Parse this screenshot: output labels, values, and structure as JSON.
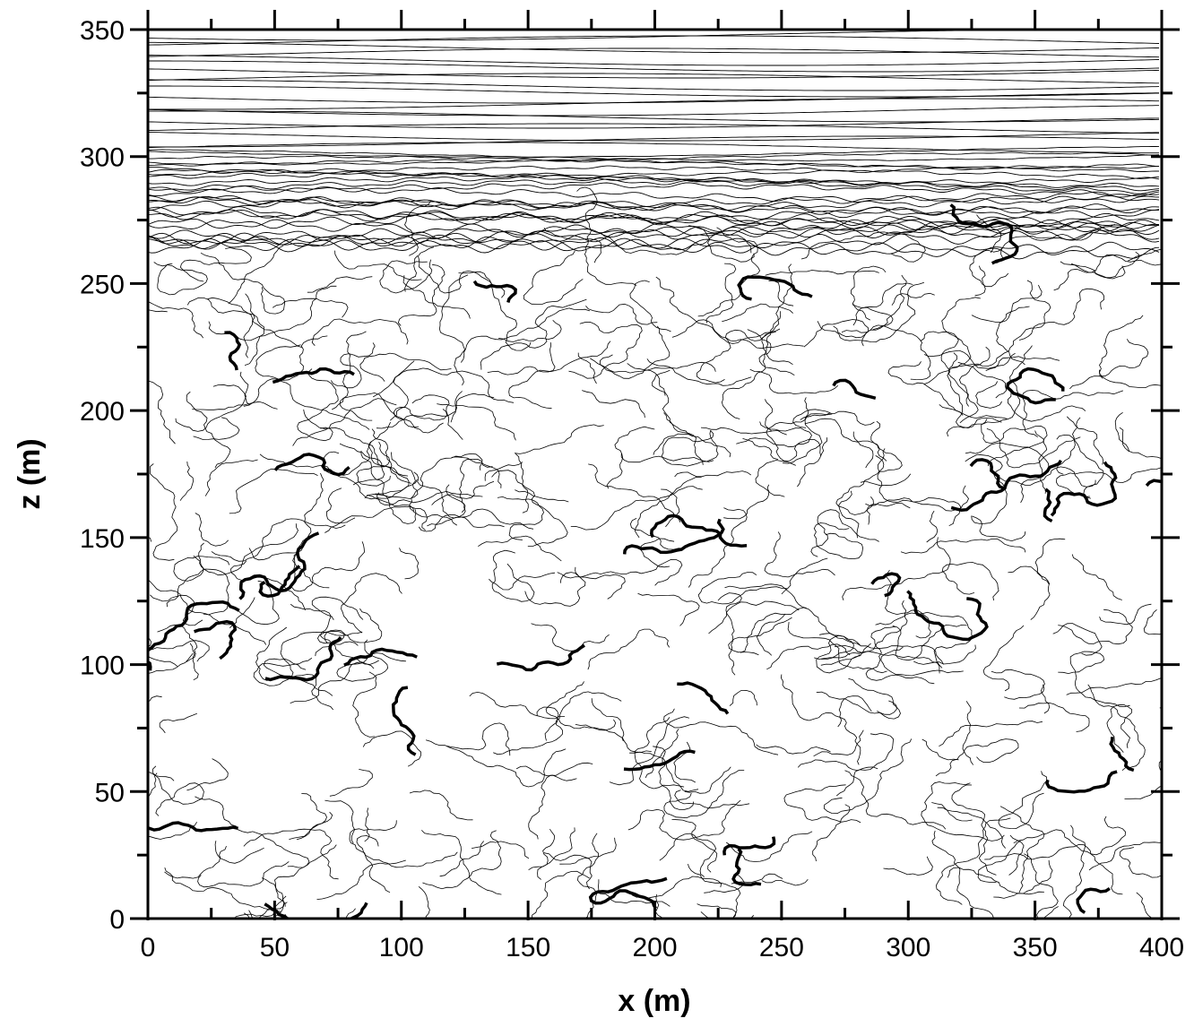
{
  "chart_data": {
    "type": "contour",
    "xlabel": "x (m)",
    "ylabel": "z (m)",
    "xlim": [
      0,
      400
    ],
    "ylim": [
      0,
      350
    ],
    "xticks": [
      0,
      50,
      100,
      150,
      200,
      250,
      300,
      350,
      400
    ],
    "yticks": [
      0,
      50,
      100,
      150,
      200,
      250,
      300,
      350
    ],
    "xminorticks": [
      25,
      75,
      125,
      175,
      225,
      275,
      325,
      375
    ],
    "yminorticks": [
      25,
      75,
      125,
      175,
      225,
      275,
      325
    ],
    "color": "#000000"
  }
}
